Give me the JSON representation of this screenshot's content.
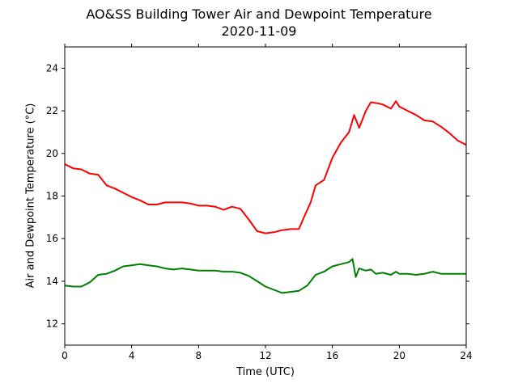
{
  "chart_data": {
    "type": "line",
    "title": "AO&SS Building Tower Air and Dewpoint Temperature",
    "subtitle": "2020-11-09",
    "xlabel": "Time (UTC)",
    "ylabel": "Air and Dewpoint Temperature (°C)",
    "xlim": [
      0,
      24
    ],
    "ylim": [
      11,
      25
    ],
    "xticks": [
      "0",
      "4",
      "8",
      "12",
      "16",
      "20",
      "24"
    ],
    "yticks": [
      "12",
      "14",
      "16",
      "18",
      "20",
      "22",
      "24"
    ],
    "grid": false,
    "series": [
      {
        "color": "#ff0000",
        "x": [
          0,
          0.5,
          1,
          1.5,
          2,
          2.5,
          3,
          3.5,
          4,
          4.5,
          5,
          5.5,
          6,
          6.5,
          7,
          7.5,
          8,
          8.5,
          9,
          9.5,
          10,
          10.5,
          11,
          11.5,
          12,
          12.5,
          13,
          13.5,
          14,
          14.3,
          14.7,
          15,
          15.5,
          16,
          16.5,
          17,
          17.3,
          17.6,
          18,
          18.3,
          18.7,
          19,
          19.5,
          19.8,
          20,
          20.5,
          21,
          21.5,
          22,
          22.5,
          23,
          23.5,
          24
        ],
        "y": [
          19.5,
          19.3,
          19.25,
          19.05,
          19.0,
          18.5,
          18.35,
          18.15,
          17.95,
          17.8,
          17.6,
          17.6,
          17.7,
          17.7,
          17.7,
          17.65,
          17.55,
          17.55,
          17.5,
          17.35,
          17.5,
          17.4,
          16.9,
          16.35,
          16.25,
          16.3,
          16.4,
          16.45,
          16.45,
          17.0,
          17.7,
          18.5,
          18.75,
          19.8,
          20.5,
          21.0,
          21.8,
          21.2,
          22.0,
          22.4,
          22.35,
          22.3,
          22.1,
          22.45,
          22.2,
          22.0,
          21.8,
          21.55,
          21.5,
          21.25,
          20.95,
          20.6,
          20.4
        ]
      },
      {
        "color": "#008000",
        "x": [
          0,
          0.5,
          1,
          1.5,
          2,
          2.5,
          3,
          3.5,
          4,
          4.5,
          5,
          5.5,
          6,
          6.5,
          7,
          7.5,
          8,
          8.5,
          9,
          9.5,
          10,
          10.5,
          11,
          11.5,
          12,
          12.5,
          13,
          13.5,
          14,
          14.5,
          15,
          15.5,
          16,
          16.5,
          17,
          17.2,
          17.4,
          17.6,
          18,
          18.3,
          18.6,
          19,
          19.5,
          19.8,
          20,
          20.5,
          21,
          21.5,
          22,
          22.5,
          23,
          23.5,
          24
        ],
        "y": [
          13.8,
          13.75,
          13.75,
          13.95,
          14.3,
          14.35,
          14.5,
          14.7,
          14.75,
          14.8,
          14.75,
          14.7,
          14.6,
          14.55,
          14.6,
          14.55,
          14.5,
          14.5,
          14.5,
          14.45,
          14.45,
          14.4,
          14.25,
          14.0,
          13.75,
          13.6,
          13.45,
          13.5,
          13.55,
          13.8,
          14.3,
          14.45,
          14.7,
          14.8,
          14.9,
          15.05,
          14.2,
          14.6,
          14.5,
          14.55,
          14.35,
          14.4,
          14.3,
          14.45,
          14.35,
          14.35,
          14.3,
          14.35,
          14.45,
          14.35,
          14.35,
          14.35,
          14.35
        ]
      }
    ]
  }
}
